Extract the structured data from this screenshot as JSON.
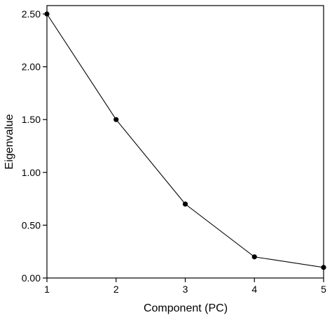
{
  "chart_data": {
    "type": "line",
    "xlabel": "Component (PC)",
    "ylabel": "Eigenvalue",
    "x": [
      1,
      2,
      3,
      4,
      5
    ],
    "series": [
      {
        "values": [
          2.5,
          1.5,
          0.7,
          0.2,
          0.1
        ]
      }
    ],
    "xlim": [
      1,
      5
    ],
    "ylim": [
      0,
      2.5
    ],
    "xticks": [
      1,
      2,
      3,
      4,
      5
    ],
    "xtick_labels": [
      "1",
      "2",
      "3",
      "4",
      "5"
    ],
    "yticks": [
      0,
      0.5,
      1.0,
      1.5,
      2.0,
      2.5
    ],
    "ytick_labels": [
      "0.00",
      "0.50",
      "1.00",
      "1.50",
      "2.00",
      "2.50"
    ],
    "grid": false,
    "legend": "none",
    "line_color": "#000000",
    "marker_color": "#000000"
  }
}
